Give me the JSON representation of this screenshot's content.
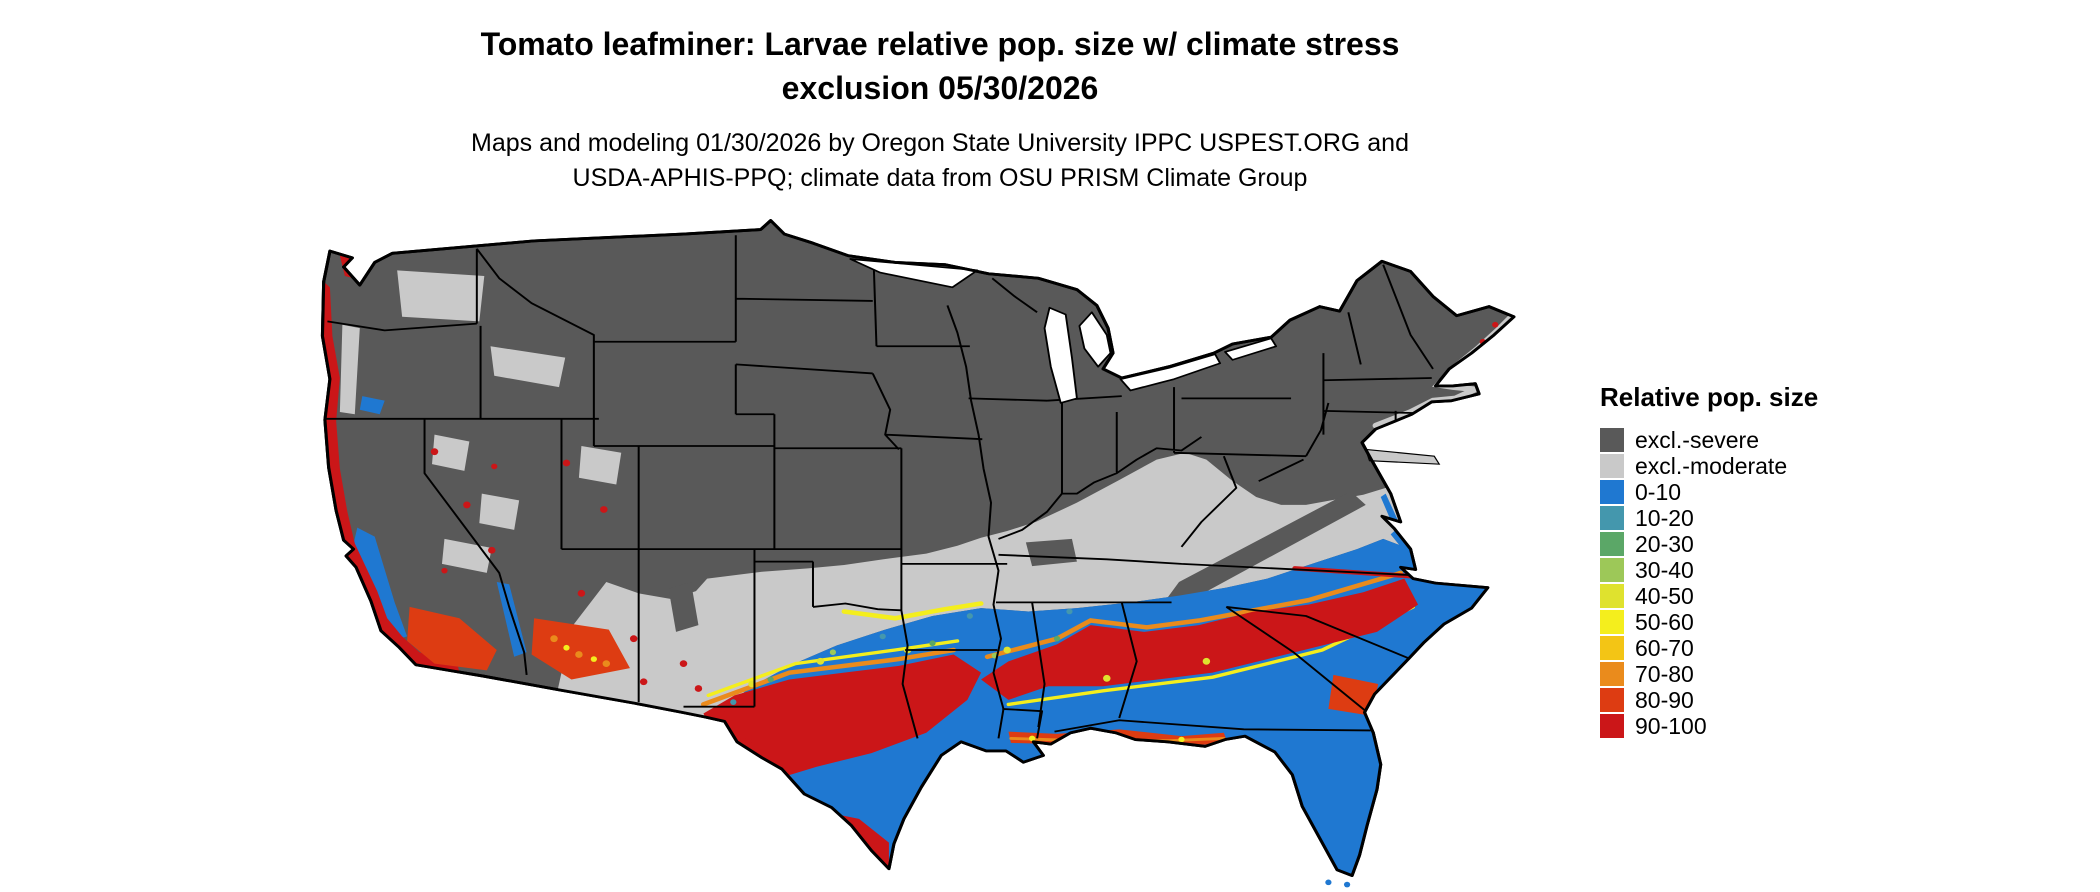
{
  "title": {
    "line1": "Tomato leafminer: Larvae relative pop. size w/ climate stress",
    "line2": "exclusion 05/30/2026"
  },
  "subtitle": {
    "line1": "Maps and modeling 01/30/2026 by Oregon State University IPPC USPEST.ORG and",
    "line2": "USDA-APHIS-PPQ; climate data from OSU PRISM Climate Group"
  },
  "legend": {
    "title": "Relative pop. size",
    "items": [
      {
        "key": "excl-severe",
        "label": "excl.-severe",
        "color": "#595959"
      },
      {
        "key": "excl-moderate",
        "label": "excl.-moderate",
        "color": "#c9c9c9"
      },
      {
        "key": "0-10",
        "label": "0-10",
        "color": "#1f78d1"
      },
      {
        "key": "10-20",
        "label": "10-20",
        "color": "#4497ad"
      },
      {
        "key": "20-30",
        "label": "20-30",
        "color": "#5ba767"
      },
      {
        "key": "30-40",
        "label": "30-40",
        "color": "#9dc858"
      },
      {
        "key": "40-50",
        "label": "40-50",
        "color": "#dfe22e"
      },
      {
        "key": "50-60",
        "label": "50-60",
        "color": "#f4ee1d"
      },
      {
        "key": "60-70",
        "label": "60-70",
        "color": "#f3c515"
      },
      {
        "key": "70-80",
        "label": "70-80",
        "color": "#ea8b1c"
      },
      {
        "key": "80-90",
        "label": "80-90",
        "color": "#dd3c12"
      },
      {
        "key": "90-100",
        "label": "90-100",
        "color": "#cb1618"
      }
    ]
  }
}
